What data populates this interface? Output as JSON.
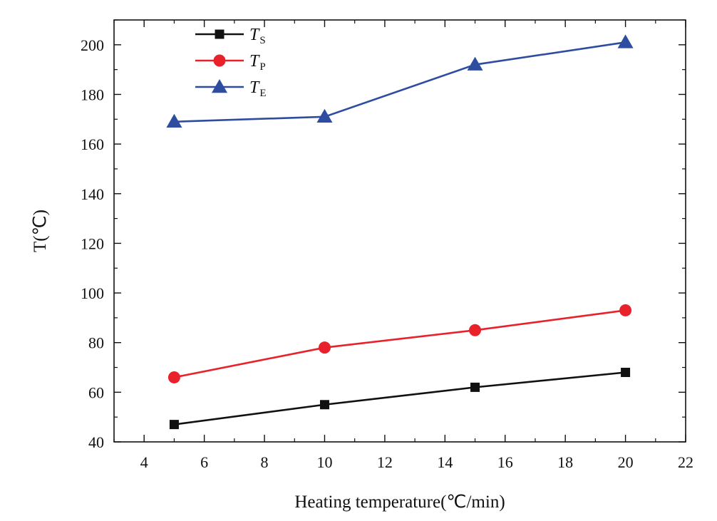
{
  "chart_data": {
    "type": "line",
    "xlabel": "Heating temperature(℃/min)",
    "ylabel": "T(℃)",
    "xlim": [
      3,
      22
    ],
    "ylim": [
      40,
      210
    ],
    "xticks": [
      4,
      6,
      8,
      10,
      12,
      14,
      16,
      18,
      20,
      22
    ],
    "yticks": [
      40,
      60,
      80,
      100,
      120,
      140,
      160,
      180,
      200
    ],
    "grid": false,
    "legend_position": "top-left",
    "x": [
      5,
      10,
      15,
      20
    ],
    "series": [
      {
        "name": "T",
        "subscript": "S",
        "marker": "square",
        "color": "#111111",
        "values": [
          47,
          55,
          62,
          68
        ]
      },
      {
        "name": "T",
        "subscript": "P",
        "marker": "circle",
        "color": "#e8212a",
        "values": [
          66,
          78,
          85,
          93
        ]
      },
      {
        "name": "T",
        "subscript": "E",
        "marker": "triangle",
        "color": "#2e4da0",
        "values": [
          169,
          171,
          192,
          201
        ]
      }
    ]
  }
}
